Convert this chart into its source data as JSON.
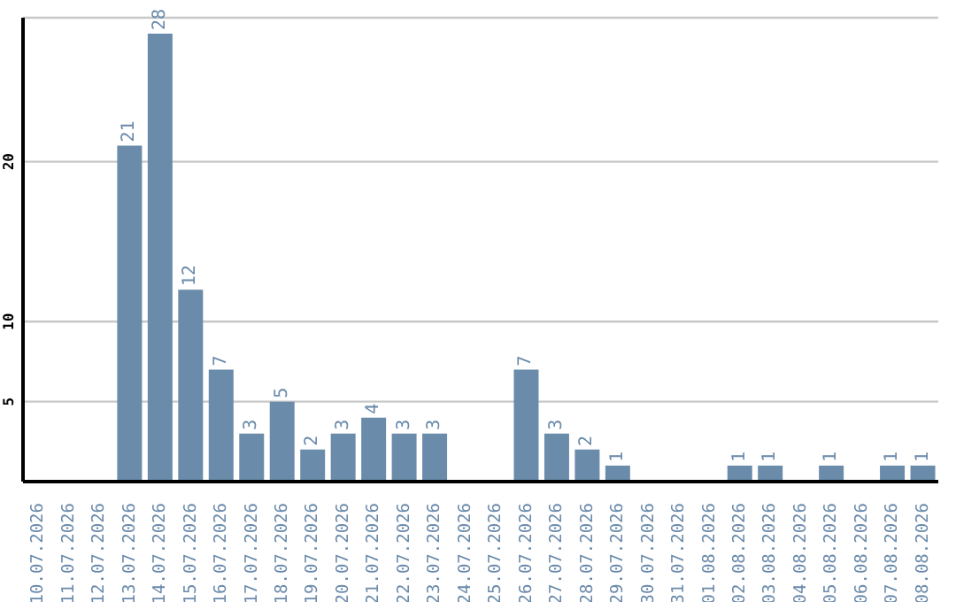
{
  "chart_data": {
    "type": "bar",
    "categories": [
      "10.07.2026",
      "11.07.2026",
      "12.07.2026",
      "13.07.2026",
      "14.07.2026",
      "15.07.2026",
      "16.07.2026",
      "17.07.2026",
      "18.07.2026",
      "19.07.2026",
      "20.07.2026",
      "21.07.2026",
      "22.07.2026",
      "23.07.2026",
      "24.07.2026",
      "25.07.2026",
      "26.07.2026",
      "27.07.2026",
      "28.07.2026",
      "29.07.2026",
      "30.07.2026",
      "31.07.2026",
      "01.08.2026",
      "02.08.2026",
      "03.08.2026",
      "04.08.2026",
      "05.08.2026",
      "06.08.2026",
      "07.08.2026",
      "08.08.2026"
    ],
    "values": [
      0,
      0,
      0,
      21,
      28,
      12,
      7,
      3,
      5,
      2,
      3,
      4,
      3,
      3,
      0,
      0,
      7,
      3,
      2,
      1,
      0,
      0,
      0,
      1,
      1,
      0,
      1,
      0,
      1,
      1
    ],
    "value_labels": [
      null,
      null,
      null,
      "21",
      "28",
      "12",
      "7",
      "3",
      "5",
      "2",
      "3",
      "4",
      "3",
      "3",
      null,
      null,
      "7",
      "3",
      "2",
      "1",
      null,
      null,
      null,
      "1",
      "1",
      null,
      "1",
      null,
      "1",
      "1"
    ],
    "color": "#6a8caa",
    "ylim": [
      0,
      29
    ],
    "yticks": [
      5,
      10,
      20
    ],
    "grid": "y"
  }
}
